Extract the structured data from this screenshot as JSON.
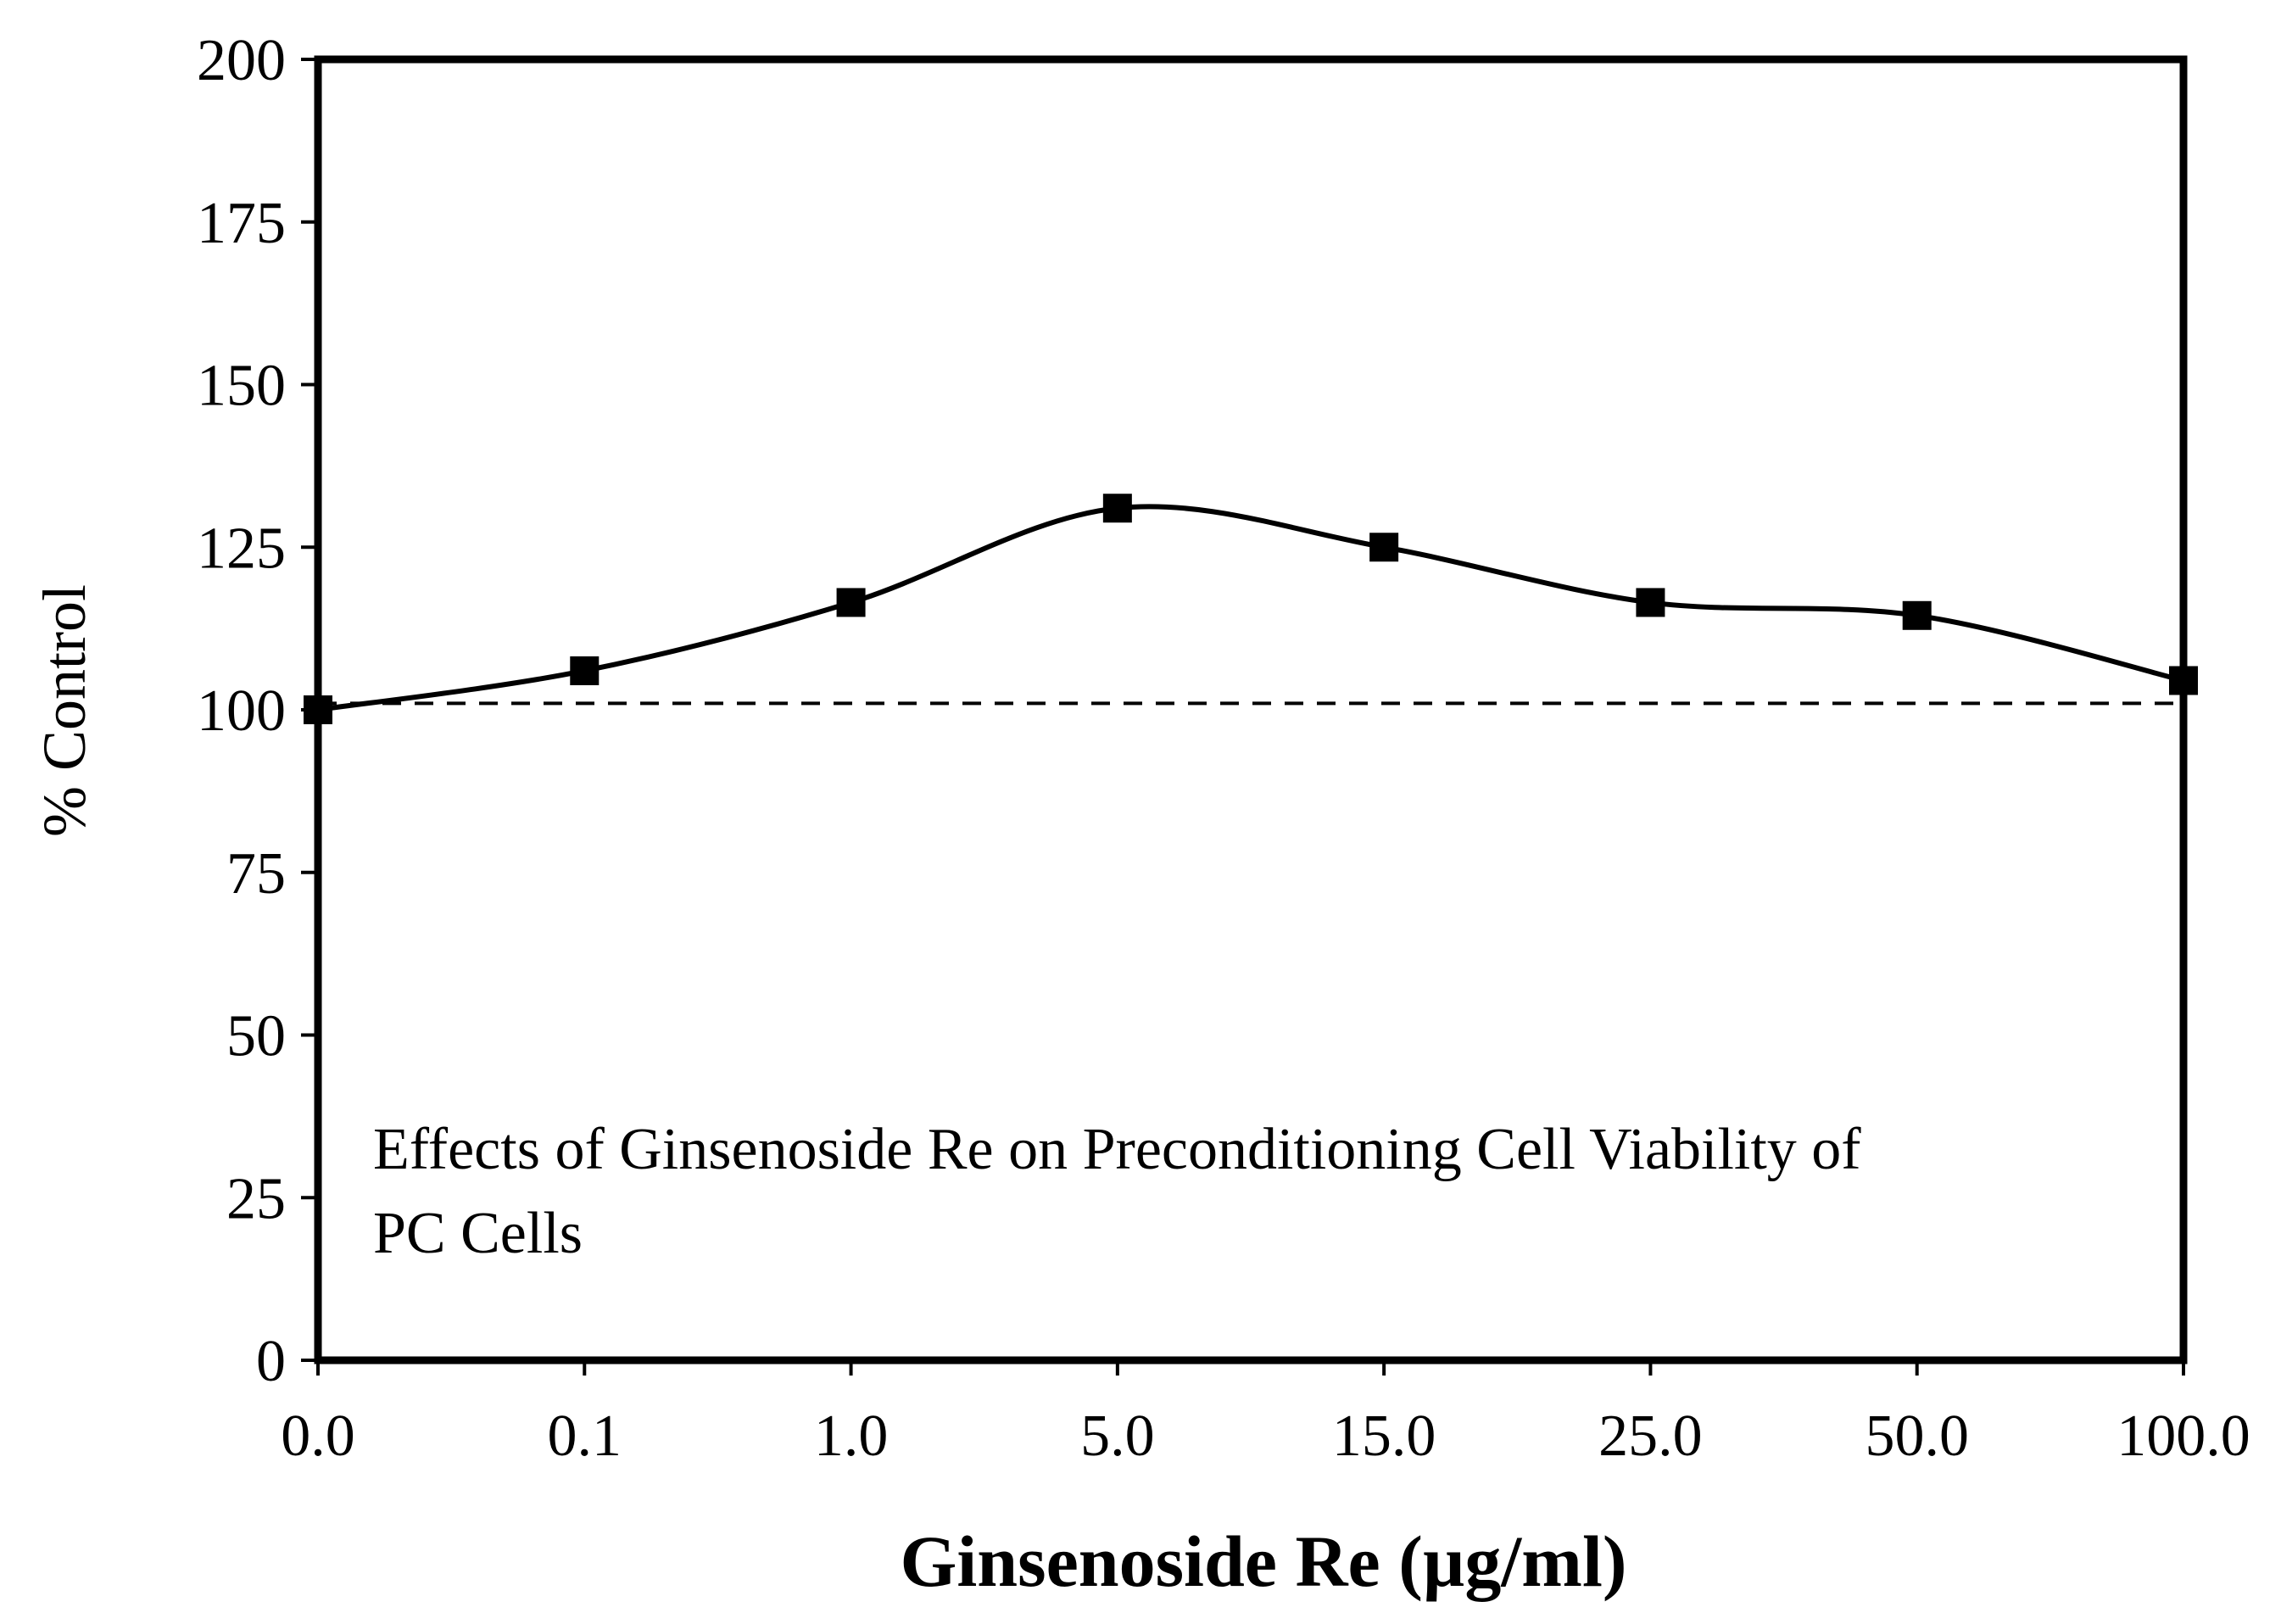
{
  "chart_data": {
    "type": "line",
    "title": "",
    "annotation_lines": [
      "Effects of Ginsenoside Re on Preconditioning Cell Viability of",
      "PC Cells"
    ],
    "xlabel": "Ginsenoside Re (µg/ml)",
    "ylabel": "% Control",
    "categories": [
      "0.0",
      "0.1",
      "1.0",
      "5.0",
      "15.0",
      "25.0",
      "50.0",
      "100.0"
    ],
    "series": [
      {
        "name": "Ginsenoside Re",
        "values": [
          100,
          106,
          116.5,
          131,
          125,
          116.5,
          114.5,
          104.5
        ],
        "marker": "square",
        "line_style": "solid",
        "smooth": true
      }
    ],
    "reference_line": {
      "value": 101,
      "style": "dashed"
    },
    "ylim": [
      0,
      200
    ],
    "yticks": [
      "0",
      "25",
      "50",
      "75",
      "100",
      "125",
      "150",
      "175",
      "200"
    ],
    "grid": false,
    "colors": {
      "line": "#000000",
      "marker": "#000000",
      "axes": "#000000",
      "background": "#ffffff"
    }
  }
}
